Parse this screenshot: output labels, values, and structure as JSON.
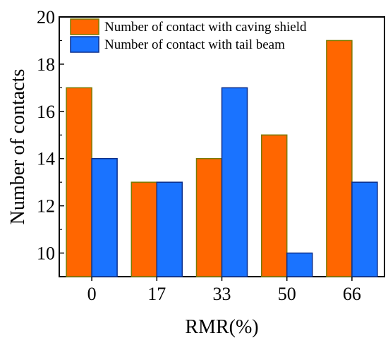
{
  "chart_data": {
    "type": "bar",
    "title": "",
    "xlabel": "RMR(%)",
    "ylabel": "Number of contacts",
    "categories": [
      "0",
      "17",
      "33",
      "50",
      "66"
    ],
    "ylim": [
      9,
      20
    ],
    "yticks": [
      10,
      12,
      14,
      16,
      18,
      20
    ],
    "grid": false,
    "legend_position": "top-left",
    "series": [
      {
        "name": "Number of contact with caving shield",
        "values": [
          17,
          13,
          14,
          15,
          19
        ],
        "color": "#ff6600",
        "edge_color": "#7a7a00"
      },
      {
        "name": "Number of contact with tail beam",
        "values": [
          14,
          13,
          17,
          10,
          13
        ],
        "color": "#1a73ff",
        "edge_color": "#0c2f8a"
      }
    ]
  }
}
